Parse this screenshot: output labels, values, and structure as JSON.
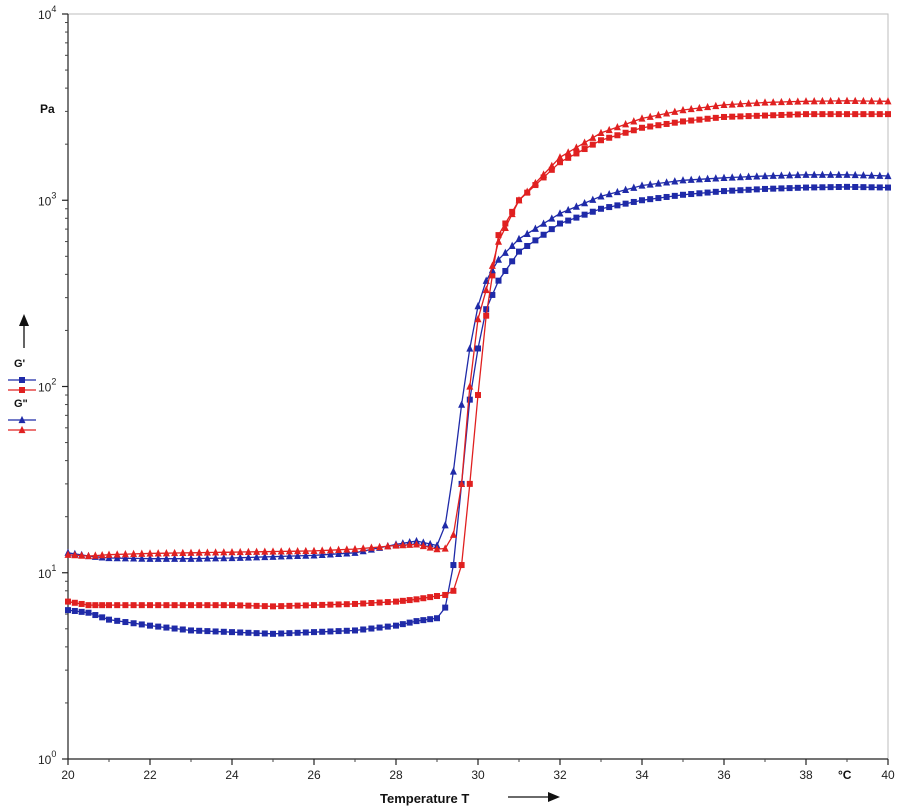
{
  "chart_data": {
    "type": "scatter",
    "title": "",
    "xlabel": "Temperature T",
    "x_unit": "°C",
    "ylabel": "",
    "y_unit": "Pa",
    "y_scale": "log",
    "xlim": [
      20,
      40
    ],
    "ylim": [
      1,
      10000
    ],
    "x_ticks": [
      "20",
      "22",
      "24",
      "26",
      "28",
      "30",
      "32",
      "34",
      "36",
      "38",
      "40"
    ],
    "y_ticks": [
      {
        "base": "10",
        "exp": "0"
      },
      {
        "base": "10",
        "exp": "1"
      },
      {
        "base": "10",
        "exp": "2"
      },
      {
        "base": "10",
        "exp": "3"
      },
      {
        "base": "10",
        "exp": "4"
      }
    ],
    "grid": false,
    "legend": {
      "placement": "left",
      "groups": [
        {
          "label": "G'",
          "marker": "square"
        },
        {
          "label": "G\"",
          "marker": "triangle"
        }
      ]
    },
    "series": [
      {
        "marker": "square",
        "color": "#1f2aa8",
        "x": [
          20,
          20.5,
          21,
          22,
          23,
          24,
          25,
          26,
          27,
          28,
          28.5,
          29,
          29.2,
          29.4,
          29.6,
          29.8,
          30,
          30.2,
          30.5,
          31,
          32,
          33,
          34,
          35,
          36,
          37,
          38,
          39,
          40
        ],
        "y": [
          6.3,
          6.1,
          5.6,
          5.2,
          4.9,
          4.8,
          4.7,
          4.8,
          4.9,
          5.2,
          5.5,
          5.7,
          6.5,
          11,
          30,
          85,
          160,
          260,
          370,
          530,
          750,
          900,
          1000,
          1070,
          1120,
          1150,
          1170,
          1180,
          1170
        ]
      },
      {
        "marker": "square",
        "color": "#e02020",
        "x": [
          20,
          20.5,
          21,
          22,
          23,
          24,
          25,
          26,
          27,
          28,
          28.5,
          29,
          29.2,
          29.4,
          29.6,
          29.8,
          30,
          30.2,
          30.5,
          31,
          32,
          33,
          34,
          35,
          36,
          37,
          38,
          39,
          40
        ],
        "y": [
          7.0,
          6.7,
          6.7,
          6.7,
          6.7,
          6.7,
          6.6,
          6.7,
          6.8,
          7.0,
          7.2,
          7.5,
          7.6,
          8.0,
          11,
          30,
          90,
          240,
          650,
          1000,
          1600,
          2100,
          2450,
          2650,
          2800,
          2850,
          2900,
          2900,
          2900
        ]
      },
      {
        "marker": "triangle",
        "color": "#1f2aa8",
        "x": [
          20,
          20.5,
          21,
          22,
          23,
          24,
          25,
          26,
          27,
          28,
          28.5,
          29,
          29.2,
          29.4,
          29.6,
          29.8,
          30,
          30.2,
          30.5,
          31,
          32,
          33,
          34,
          35,
          36,
          37,
          38,
          39,
          40
        ],
        "y": [
          12.8,
          12.3,
          12.0,
          11.9,
          11.9,
          12.0,
          12.2,
          12.4,
          12.8,
          14.2,
          14.8,
          14.0,
          18,
          35,
          80,
          160,
          270,
          370,
          480,
          620,
          850,
          1050,
          1200,
          1280,
          1320,
          1350,
          1370,
          1370,
          1350
        ]
      },
      {
        "marker": "triangle",
        "color": "#e02020",
        "x": [
          20,
          20.5,
          21,
          22,
          23,
          24,
          25,
          26,
          27,
          28,
          28.5,
          29,
          29.2,
          29.4,
          29.6,
          29.8,
          30,
          30.2,
          30.5,
          31,
          32,
          33,
          34,
          35,
          36,
          37,
          38,
          39,
          40
        ],
        "y": [
          12.5,
          12.3,
          12.5,
          12.7,
          12.8,
          12.9,
          13.0,
          13.1,
          13.4,
          14.0,
          14.2,
          13.4,
          13.5,
          16,
          30,
          100,
          230,
          330,
          600,
          1000,
          1700,
          2300,
          2750,
          3050,
          3250,
          3350,
          3400,
          3420,
          3400
        ]
      }
    ]
  }
}
